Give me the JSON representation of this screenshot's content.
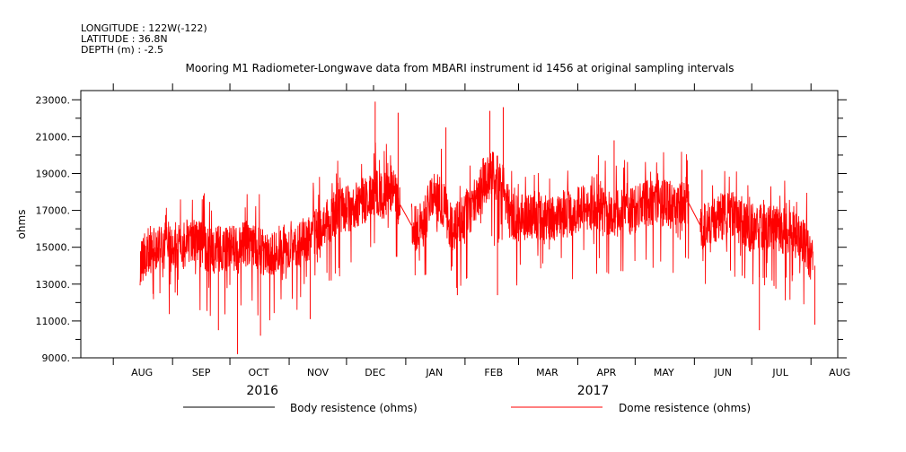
{
  "header": {
    "longitude": "LONGITUDE : 122W(-122)",
    "latitude": "LATITUDE : 36.8N",
    "depth": "DEPTH (m) : -2.5"
  },
  "chart_data": {
    "type": "line",
    "title": "Mooring M1 Radiometer-Longwave data from MBARI instrument id 1456 at original sampling intervals",
    "xlabel": "",
    "ylabel": "ohms",
    "ylim": [
      9000,
      23500
    ],
    "xlim": [
      "2016-07-15",
      "2017-08-15"
    ],
    "y_ticks": [
      9000,
      11000,
      13000,
      15000,
      17000,
      19000,
      21000,
      23000
    ],
    "y_tick_labels": [
      "9000.",
      "11000.",
      "13000.",
      "15000.",
      "17000.",
      "19000.",
      "21000.",
      "23000."
    ],
    "x_month_labels": [
      "AUG",
      "SEP",
      "OCT",
      "NOV",
      "DEC",
      "JAN",
      "FEB",
      "MAR",
      "APR",
      "MAY",
      "JUN",
      "JUL",
      "AUG"
    ],
    "x_year_labels": [
      "2016",
      "2017"
    ],
    "grid": false,
    "legend": "bottom",
    "series": [
      {
        "name": "Body resistence (ohms)",
        "color": "#000000",
        "points": []
      },
      {
        "name": "Dome resistence (ohms)",
        "color": "#ff0000",
        "points": [
          [
            "2016-08-15",
            14200
          ],
          [
            "2016-08-20",
            15000
          ],
          [
            "2016-08-25",
            15000
          ],
          [
            "2016-08-31",
            15200
          ],
          [
            "2016-09-05",
            15000
          ],
          [
            "2016-09-10",
            15300
          ],
          [
            "2016-09-15",
            15200
          ],
          [
            "2016-09-20",
            14800
          ],
          [
            "2016-09-25",
            14900
          ],
          [
            "2016-09-30",
            15000
          ],
          [
            "2016-10-05",
            14800
          ],
          [
            "2016-10-10",
            15300
          ],
          [
            "2016-10-15",
            15000
          ],
          [
            "2016-10-20",
            14600
          ],
          [
            "2016-10-25",
            14800
          ],
          [
            "2016-10-31",
            15200
          ],
          [
            "2016-11-05",
            15000
          ],
          [
            "2016-11-10",
            15500
          ],
          [
            "2016-11-15",
            15800
          ],
          [
            "2016-11-20",
            16500
          ],
          [
            "2016-11-25",
            16800
          ],
          [
            "2016-11-30",
            17000
          ],
          [
            "2016-12-05",
            17200
          ],
          [
            "2016-12-10",
            17500
          ],
          [
            "2016-12-15",
            18000
          ],
          [
            "2016-12-20",
            17800
          ],
          [
            "2016-12-25",
            18200
          ],
          [
            "2016-12-28",
            17500
          ],
          [
            "2017-01-05",
            16000
          ],
          [
            "2017-01-10",
            16300
          ],
          [
            "2017-01-15",
            18000
          ],
          [
            "2017-01-20",
            17500
          ],
          [
            "2017-01-25",
            16000
          ],
          [
            "2017-01-31",
            16500
          ],
          [
            "2017-02-05",
            17200
          ],
          [
            "2017-02-10",
            18500
          ],
          [
            "2017-02-15",
            19000
          ],
          [
            "2017-02-20",
            18500
          ],
          [
            "2017-02-25",
            16800
          ],
          [
            "2017-03-01",
            16500
          ],
          [
            "2017-03-10",
            16800
          ],
          [
            "2017-03-20",
            16500
          ],
          [
            "2017-03-31",
            17000
          ],
          [
            "2017-04-10",
            17200
          ],
          [
            "2017-04-20",
            16800
          ],
          [
            "2017-04-30",
            17000
          ],
          [
            "2017-05-10",
            17500
          ],
          [
            "2017-05-20",
            17300
          ],
          [
            "2017-05-28",
            17600
          ],
          [
            "2017-06-05",
            16000
          ],
          [
            "2017-06-10",
            16500
          ],
          [
            "2017-06-20",
            16800
          ],
          [
            "2017-06-30",
            16000
          ],
          [
            "2017-07-10",
            16200
          ],
          [
            "2017-07-20",
            15800
          ],
          [
            "2017-07-28",
            15500
          ],
          [
            "2017-08-02",
            14000
          ]
        ],
        "min_points": [
          [
            "2016-09-25",
            10500
          ],
          [
            "2016-10-05",
            9200
          ],
          [
            "2016-10-17",
            10200
          ],
          [
            "2016-11-12",
            11100
          ],
          [
            "2017-01-28",
            12400
          ],
          [
            "2017-02-18",
            12400
          ],
          [
            "2017-07-05",
            10500
          ],
          [
            "2017-08-03",
            10800
          ]
        ],
        "max_points": [
          [
            "2016-12-16",
            22900
          ],
          [
            "2016-12-28",
            22300
          ],
          [
            "2017-01-22",
            21500
          ],
          [
            "2017-02-14",
            22400
          ],
          [
            "2017-02-21",
            22600
          ],
          [
            "2017-04-20",
            20800
          ],
          [
            "2017-06-05",
            19200
          ]
        ]
      }
    ]
  }
}
